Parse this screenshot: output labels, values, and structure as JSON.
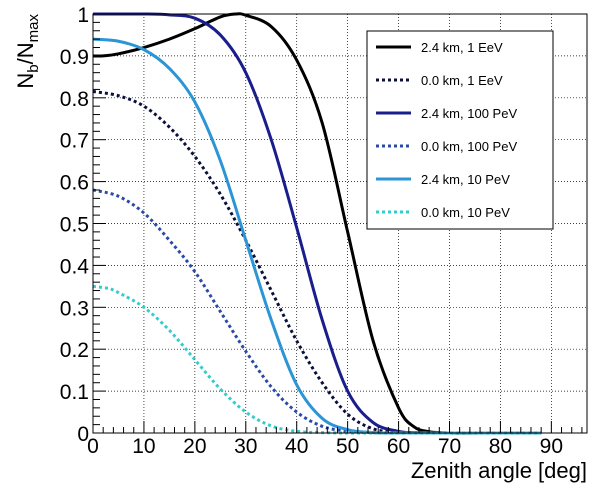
{
  "chart_data": {
    "type": "line",
    "xlabel": "Zenith angle [deg]",
    "ylabel_main": "N",
    "ylabel_sub1": "b",
    "ylabel_slash": "/N",
    "ylabel_sub2": "max",
    "xlim": [
      0,
      97
    ],
    "ylim": [
      0,
      1.0
    ],
    "x_ticks": [
      "0",
      "10",
      "20",
      "30",
      "40",
      "50",
      "60",
      "70",
      "80",
      "90"
    ],
    "y_ticks": [
      "0",
      "0.1",
      "0.2",
      "0.3",
      "0.4",
      "0.5",
      "0.6",
      "0.7",
      "0.8",
      "0.9",
      "1"
    ],
    "grid": true,
    "legend_position": "top-right",
    "series": [
      {
        "name": "2.4 km, 1 EeV",
        "color": "#000000",
        "style": "solid",
        "x": [
          0,
          2,
          5,
          10,
          15,
          20,
          25,
          28,
          30,
          35,
          40,
          45,
          50,
          55,
          60,
          63,
          66,
          70,
          80,
          88
        ],
        "y": [
          0.9,
          0.9,
          0.905,
          0.92,
          0.94,
          0.965,
          0.993,
          1.0,
          0.997,
          0.97,
          0.89,
          0.74,
          0.48,
          0.22,
          0.06,
          0.015,
          0.003,
          0.0,
          0.0,
          0.0
        ]
      },
      {
        "name": "0.0 km, 1 EeV",
        "color": "#0a0f3c",
        "style": "dotted",
        "x": [
          0,
          5,
          10,
          15,
          20,
          25,
          30,
          35,
          40,
          45,
          50,
          55,
          60,
          65,
          70,
          88
        ],
        "y": [
          0.815,
          0.805,
          0.78,
          0.73,
          0.66,
          0.57,
          0.46,
          0.34,
          0.22,
          0.12,
          0.045,
          0.01,
          0.002,
          0.0,
          0.0,
          0.0
        ]
      },
      {
        "name": "2.4 km, 100 PeV",
        "color": "#1a1e8c",
        "style": "solid",
        "x": [
          0,
          5,
          10,
          15,
          20,
          25,
          30,
          35,
          40,
          45,
          50,
          55,
          60,
          63,
          66,
          70,
          88
        ],
        "y": [
          1.0,
          1.0,
          1.0,
          0.998,
          0.99,
          0.95,
          0.86,
          0.7,
          0.49,
          0.27,
          0.1,
          0.025,
          0.004,
          0.001,
          0.0,
          0.0,
          0.0
        ]
      },
      {
        "name": "0.0 km, 100 PeV",
        "color": "#2a4aa8",
        "style": "dotted",
        "x": [
          0,
          5,
          10,
          15,
          20,
          25,
          30,
          35,
          40,
          45,
          50,
          55,
          60,
          65,
          88
        ],
        "y": [
          0.58,
          0.565,
          0.525,
          0.46,
          0.385,
          0.29,
          0.195,
          0.11,
          0.05,
          0.016,
          0.004,
          0.001,
          0.0,
          0.0,
          0.0
        ]
      },
      {
        "name": "2.4 km, 10 PeV",
        "color": "#2b95d6",
        "style": "solid",
        "x": [
          0,
          5,
          10,
          15,
          20,
          25,
          30,
          35,
          40,
          45,
          50,
          55,
          60,
          65,
          88
        ],
        "y": [
          0.94,
          0.935,
          0.915,
          0.87,
          0.79,
          0.65,
          0.46,
          0.27,
          0.115,
          0.035,
          0.008,
          0.001,
          0.0,
          0.0,
          0.0
        ]
      },
      {
        "name": "0.0 km, 10 PeV",
        "color": "#33cccc",
        "style": "dotted",
        "x": [
          0,
          3,
          5,
          10,
          15,
          20,
          25,
          30,
          35,
          40,
          45,
          50,
          55,
          88
        ],
        "y": [
          0.35,
          0.345,
          0.335,
          0.3,
          0.245,
          0.175,
          0.105,
          0.05,
          0.017,
          0.004,
          0.001,
          0.0,
          0.0,
          0.0
        ]
      }
    ]
  }
}
